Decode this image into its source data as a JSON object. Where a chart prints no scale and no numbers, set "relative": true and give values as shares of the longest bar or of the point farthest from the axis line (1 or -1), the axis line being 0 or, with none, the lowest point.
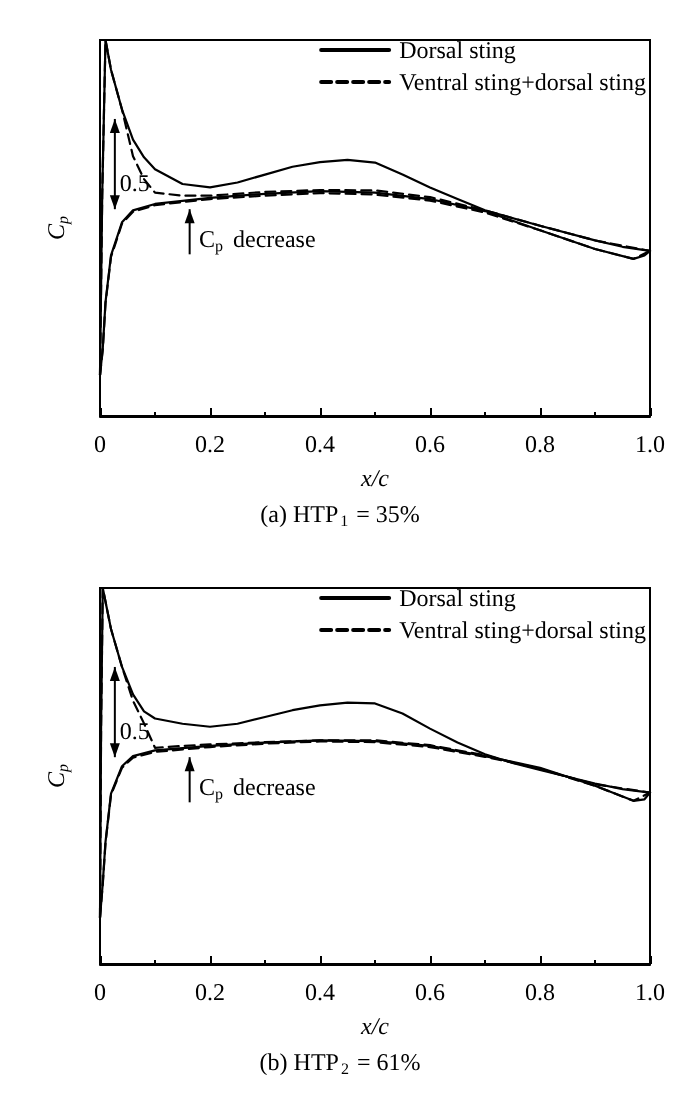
{
  "chart_data": [
    {
      "type": "line",
      "title": "(a) HTP$_{1}$ = 35%",
      "xlabel": "x/c",
      "ylabel": "C$_{p}$",
      "relative": true,
      "xlim": [
        0,
        1
      ],
      "xticks": [
        0,
        0.2,
        0.4,
        0.6,
        0.8,
        {
          "value": 1,
          "label": "1.0"
        }
      ],
      "legend": "top right",
      "marker": "none",
      "grid": false,
      "annotations": [
        "0.5",
        "C$_{p}$ decrease"
      ],
      "series": [
        {
          "name": "Dorsal sting",
          "color": "#000000",
          "line_style": "solid",
          "x": [
            0,
            0.004,
            0.01,
            0.02,
            0.04,
            0.06,
            0.08,
            0.1,
            0.15,
            0.2,
            0.25,
            0.3,
            0.35,
            0.4,
            0.45,
            0.5,
            0.55,
            0.6,
            0.65,
            0.7,
            0.8,
            0.9,
            0.95,
            1.0
          ],
          "values": [
            0.109,
            0.586,
            1.0,
            0.921,
            0.815,
            0.735,
            0.688,
            0.656,
            0.617,
            0.608,
            0.621,
            0.642,
            0.663,
            0.675,
            0.681,
            0.674,
            0.642,
            0.608,
            0.577,
            0.547,
            0.506,
            0.467,
            0.45,
            0.439
          ]
        },
        {
          "color": "#000000",
          "line_style": "solid",
          "x": [
            0,
            0.005,
            0.01,
            0.02,
            0.04,
            0.06,
            0.1,
            0.2,
            0.3,
            0.4,
            0.5,
            0.6,
            0.7,
            0.8,
            0.9,
            0.97,
            0.99,
            1.0
          ],
          "values": [
            0.109,
            0.18,
            0.303,
            0.427,
            0.515,
            0.547,
            0.564,
            0.58,
            0.591,
            0.598,
            0.594,
            0.577,
            0.545,
            0.494,
            0.444,
            0.418,
            0.427,
            0.439
          ]
        },
        {
          "name": "Ventral sting+dorsal sting",
          "color": "#000000",
          "line_style": "dashed",
          "x": [
            0,
            0.004,
            0.01,
            0.02,
            0.04,
            0.06,
            0.08,
            0.1,
            0.15,
            0.2,
            0.3,
            0.4,
            0.5,
            0.6,
            0.7,
            0.8,
            0.9,
            1.0
          ],
          "values": [
            0.109,
            0.586,
            1.0,
            0.921,
            0.815,
            0.691,
            0.63,
            0.594,
            0.586,
            0.586,
            0.596,
            0.601,
            0.6,
            0.582,
            0.547,
            0.506,
            0.467,
            0.439
          ]
        },
        {
          "color": "#000000",
          "line_style": "dashed",
          "x": [
            0,
            0.005,
            0.01,
            0.02,
            0.04,
            0.06,
            0.1,
            0.2,
            0.3,
            0.4,
            0.5,
            0.6,
            0.7,
            0.8,
            0.9,
            0.97,
            1.0
          ],
          "values": [
            0.109,
            0.176,
            0.3,
            0.423,
            0.512,
            0.543,
            0.561,
            0.577,
            0.586,
            0.593,
            0.589,
            0.573,
            0.541,
            0.494,
            0.444,
            0.418,
            0.439
          ]
        }
      ]
    },
    {
      "type": "line",
      "title": "(b) HTP$_{2}$ = 61%",
      "xlabel": "x/c",
      "ylabel": "C$_{p}$",
      "relative": true,
      "xlim": [
        0,
        1
      ],
      "xticks": [
        0,
        0.2,
        0.4,
        0.6,
        0.8,
        {
          "value": 1,
          "label": "1.0"
        }
      ],
      "legend": "top right",
      "marker": "none",
      "grid": false,
      "annotations": [
        "0.5",
        "C$_{p}$ decrease"
      ],
      "series": [
        {
          "name": "Dorsal sting",
          "color": "#000000",
          "line_style": "solid",
          "x": [
            0,
            0.002,
            0.005,
            0.02,
            0.04,
            0.06,
            0.08,
            0.1,
            0.15,
            0.2,
            0.25,
            0.3,
            0.35,
            0.4,
            0.45,
            0.5,
            0.55,
            0.6,
            0.65,
            0.7,
            0.75,
            0.8,
            0.9,
            0.95,
            1.0
          ],
          "values": [
            0.124,
            0.635,
            1.0,
            0.891,
            0.79,
            0.717,
            0.672,
            0.653,
            0.639,
            0.631,
            0.639,
            0.657,
            0.675,
            0.688,
            0.695,
            0.693,
            0.666,
            0.626,
            0.589,
            0.558,
            0.535,
            0.516,
            0.48,
            0.465,
            0.456
          ]
        },
        {
          "color": "#000000",
          "line_style": "solid",
          "x": [
            0,
            0.005,
            0.01,
            0.02,
            0.04,
            0.06,
            0.1,
            0.2,
            0.3,
            0.4,
            0.5,
            0.6,
            0.7,
            0.8,
            0.9,
            0.97,
            0.99,
            1.0
          ],
          "values": [
            0.124,
            0.215,
            0.325,
            0.453,
            0.526,
            0.553,
            0.568,
            0.58,
            0.589,
            0.595,
            0.593,
            0.58,
            0.553,
            0.522,
            0.474,
            0.434,
            0.438,
            0.456
          ]
        },
        {
          "name": "Ventral sting+dorsal sting",
          "color": "#000000",
          "line_style": "dashed",
          "x": [
            0,
            0.002,
            0.005,
            0.02,
            0.04,
            0.06,
            0.08,
            0.1,
            0.15,
            0.2,
            0.3,
            0.4,
            0.5,
            0.6,
            0.7,
            0.8,
            0.9,
            1.0
          ],
          "values": [
            0.124,
            0.635,
            1.0,
            0.891,
            0.79,
            0.7,
            0.64,
            0.575,
            0.58,
            0.584,
            0.59,
            0.595,
            0.595,
            0.582,
            0.555,
            0.518,
            0.478,
            0.456
          ]
        },
        {
          "color": "#000000",
          "line_style": "dashed",
          "x": [
            0,
            0.005,
            0.01,
            0.02,
            0.04,
            0.06,
            0.1,
            0.2,
            0.3,
            0.4,
            0.5,
            0.6,
            0.7,
            0.8,
            0.9,
            0.97,
            1.0
          ],
          "values": [
            0.124,
            0.211,
            0.322,
            0.45,
            0.522,
            0.549,
            0.564,
            0.577,
            0.586,
            0.592,
            0.59,
            0.577,
            0.551,
            0.52,
            0.474,
            0.434,
            0.456
          ]
        }
      ]
    }
  ]
}
